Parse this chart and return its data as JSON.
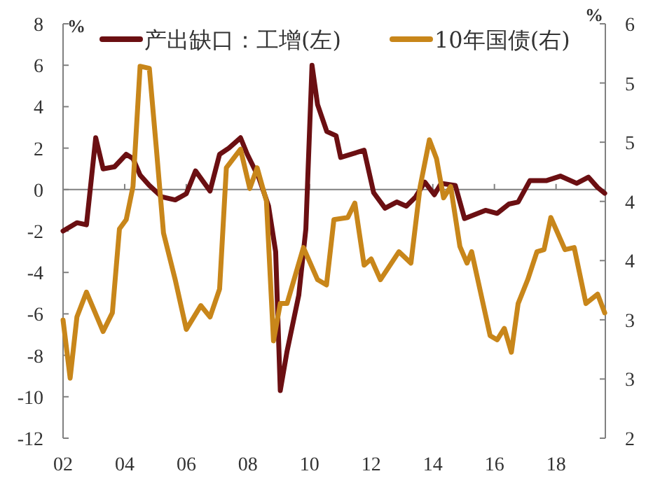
{
  "chart_data": {
    "type": "line",
    "ylabel": "%",
    "y2label": "%",
    "legend": "top",
    "xlim": [
      2002,
      2019.6
    ],
    "xticks": [
      {
        "value": 2002,
        "label": "02"
      },
      {
        "value": 2004,
        "label": "04"
      },
      {
        "value": 2006,
        "label": "06"
      },
      {
        "value": 2008,
        "label": "08"
      },
      {
        "value": 2010,
        "label": "10"
      },
      {
        "value": 2012,
        "label": "12"
      },
      {
        "value": 2014,
        "label": "14"
      },
      {
        "value": 2016,
        "label": "16"
      },
      {
        "value": 2018,
        "label": "18"
      }
    ],
    "ylim": [
      -12,
      8
    ],
    "yticks": [
      8,
      6,
      4,
      2,
      0,
      -2,
      -4,
      -6,
      -8,
      -10,
      -12
    ],
    "y2lim": [
      2,
      6
    ],
    "y2ticks": [
      {
        "value": 6,
        "label": "6"
      },
      {
        "value": 5.4286,
        "label": "5"
      },
      {
        "value": 4.8571,
        "label": "5"
      },
      {
        "value": 4.2857,
        "label": "4"
      },
      {
        "value": 3.7143,
        "label": "4"
      },
      {
        "value": 3.1429,
        "label": "3"
      },
      {
        "value": 2.5714,
        "label": "3"
      },
      {
        "value": 2,
        "label": "2"
      }
    ],
    "series": [
      {
        "name": "产出缺口：工增(左)",
        "color": "#6b0f12",
        "x": [
          2002.0,
          2002.45,
          2002.76,
          2003.06,
          2003.3,
          2003.67,
          2004.05,
          2004.27,
          2004.5,
          2004.8,
          2005.2,
          2005.64,
          2006.0,
          2006.3,
          2006.77,
          2007.08,
          2007.38,
          2007.76,
          2007.98,
          2008.36,
          2008.67,
          2008.9,
          2009.05,
          2009.27,
          2009.65,
          2009.88,
          2010.08,
          2010.26,
          2010.56,
          2010.86,
          2011.01,
          2011.77,
          2012.08,
          2012.45,
          2012.83,
          2013.14,
          2013.44,
          2013.74,
          2014.05,
          2014.27,
          2014.73,
          2015.03,
          2015.71,
          2016.09,
          2016.47,
          2016.77,
          2017.15,
          2017.68,
          2018.14,
          2018.67,
          2019.05,
          2019.35,
          2019.58
        ],
        "values": [
          -2.0,
          -1.6,
          -1.7,
          2.5,
          1.0,
          1.1,
          1.7,
          1.5,
          0.7,
          0.2,
          -0.35,
          -0.5,
          -0.2,
          0.9,
          -0.07,
          1.7,
          2.0,
          2.5,
          1.7,
          0.55,
          -0.8,
          -3.0,
          -9.7,
          -7.8,
          -5.1,
          -1.9,
          6.0,
          4.1,
          2.8,
          2.6,
          1.55,
          1.9,
          -0.15,
          -0.9,
          -0.6,
          -0.8,
          -0.36,
          0.36,
          -0.25,
          0.3,
          0.2,
          -1.4,
          -1.0,
          -1.15,
          -0.7,
          -0.6,
          0.43,
          0.43,
          0.65,
          0.3,
          0.6,
          0.1,
          -0.18
        ]
      },
      {
        "name": "10年国债(右)",
        "color": "#c8861a",
        "axis": "y2",
        "x": [
          2002.0,
          2002.23,
          2002.45,
          2002.76,
          2003.3,
          2003.6,
          2003.83,
          2004.05,
          2004.27,
          2004.5,
          2004.8,
          2005.03,
          2005.26,
          2005.64,
          2006.0,
          2006.47,
          2006.77,
          2007.08,
          2007.3,
          2007.76,
          2008.06,
          2008.3,
          2008.6,
          2008.83,
          2009.05,
          2009.27,
          2009.8,
          2010.26,
          2010.55,
          2010.79,
          2011.24,
          2011.47,
          2011.77,
          2012.0,
          2012.3,
          2012.9,
          2013.29,
          2013.59,
          2013.89,
          2014.12,
          2014.35,
          2014.58,
          2014.88,
          2015.11,
          2015.26,
          2015.86,
          2016.09,
          2016.32,
          2016.55,
          2016.77,
          2017.08,
          2017.38,
          2017.61,
          2017.83,
          2018.29,
          2018.59,
          2018.97,
          2019.35,
          2019.58
        ],
        "values": [
          3.14,
          2.58,
          3.17,
          3.41,
          3.03,
          3.21,
          4.02,
          4.11,
          4.43,
          5.59,
          5.57,
          4.79,
          3.98,
          3.53,
          3.05,
          3.28,
          3.17,
          3.44,
          4.61,
          4.79,
          4.41,
          4.61,
          4.29,
          2.94,
          3.3,
          3.3,
          3.84,
          3.53,
          3.48,
          4.11,
          4.13,
          4.27,
          3.67,
          3.73,
          3.53,
          3.8,
          3.69,
          4.43,
          4.88,
          4.7,
          4.32,
          4.43,
          3.85,
          3.69,
          3.8,
          2.99,
          2.95,
          3.06,
          2.83,
          3.3,
          3.53,
          3.8,
          3.82,
          4.13,
          3.82,
          3.84,
          3.3,
          3.39,
          3.21
        ]
      }
    ]
  }
}
